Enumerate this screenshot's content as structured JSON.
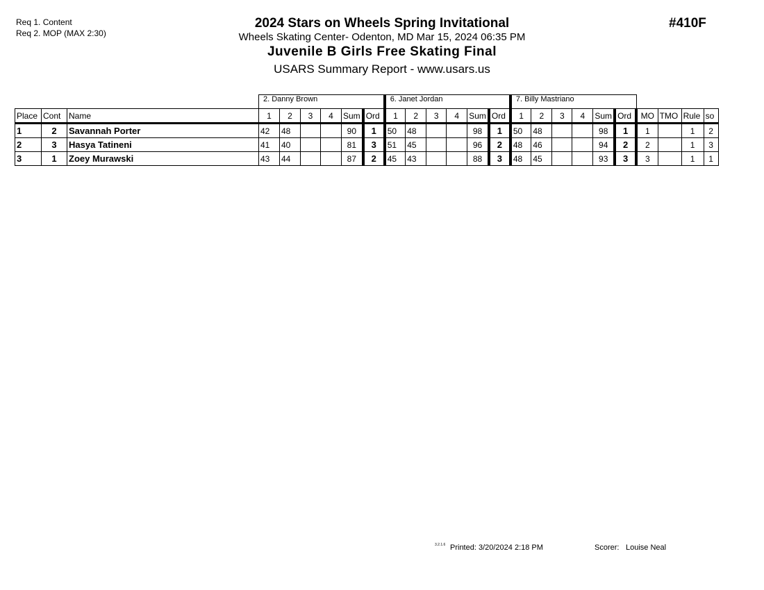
{
  "requirements": [
    "Req  1.  Content",
    "Req  2.  MOP (MAX 2:30)"
  ],
  "header": {
    "title": "2024 Stars on Wheels Spring Invitational",
    "venue": "Wheels Skating Center- Odenton, MD  Mar 15, 2024  06:35 PM",
    "event": "Juvenile B Girls Free Skating Final",
    "report": "USARS Summary Report - www.usars.us",
    "event_number": "#410F"
  },
  "table": {
    "judges": [
      "2.  Danny Brown",
      "6.  Janet Jordan",
      "7.  Billy Mastriano"
    ],
    "columns": {
      "place": "Place",
      "cont": "Cont",
      "name": "Name",
      "marks": [
        "1",
        "2",
        "3",
        "4"
      ],
      "sum": "Sum",
      "ord": "Ord",
      "mo": "MO",
      "tmo": "TMO",
      "rule": "Rule",
      "so": "so"
    },
    "rows": [
      {
        "place": "1",
        "cont": "2",
        "name": "Savannah Porter",
        "judges": [
          {
            "m": [
              "42",
              "48",
              "",
              ""
            ],
            "sum": "90",
            "ord": "1"
          },
          {
            "m": [
              "50",
              "48",
              "",
              ""
            ],
            "sum": "98",
            "ord": "1"
          },
          {
            "m": [
              "50",
              "48",
              "",
              ""
            ],
            "sum": "98",
            "ord": "1"
          }
        ],
        "mo": "1",
        "tmo": "",
        "rule": "1",
        "so": "2"
      },
      {
        "place": "2",
        "cont": "3",
        "name": "Hasya Tatineni",
        "judges": [
          {
            "m": [
              "41",
              "40",
              "",
              ""
            ],
            "sum": "81",
            "ord": "3"
          },
          {
            "m": [
              "51",
              "45",
              "",
              ""
            ],
            "sum": "96",
            "ord": "2"
          },
          {
            "m": [
              "48",
              "46",
              "",
              ""
            ],
            "sum": "94",
            "ord": "2"
          }
        ],
        "mo": "2",
        "tmo": "",
        "rule": "1",
        "so": "3"
      },
      {
        "place": "3",
        "cont": "1",
        "name": "Zoey Murawski",
        "judges": [
          {
            "m": [
              "43",
              "44",
              "",
              ""
            ],
            "sum": "87",
            "ord": "2"
          },
          {
            "m": [
              "45",
              "43",
              "",
              ""
            ],
            "sum": "88",
            "ord": "3"
          },
          {
            "m": [
              "48",
              "45",
              "",
              ""
            ],
            "sum": "93",
            "ord": "3"
          }
        ],
        "mo": "3",
        "tmo": "",
        "rule": "1",
        "so": "1"
      }
    ]
  },
  "footer": {
    "version": "3.2.1.6",
    "printed": "Printed:  3/20/2024  2:18 PM",
    "scorer_label": "Scorer:",
    "scorer": "Louise Neal"
  }
}
